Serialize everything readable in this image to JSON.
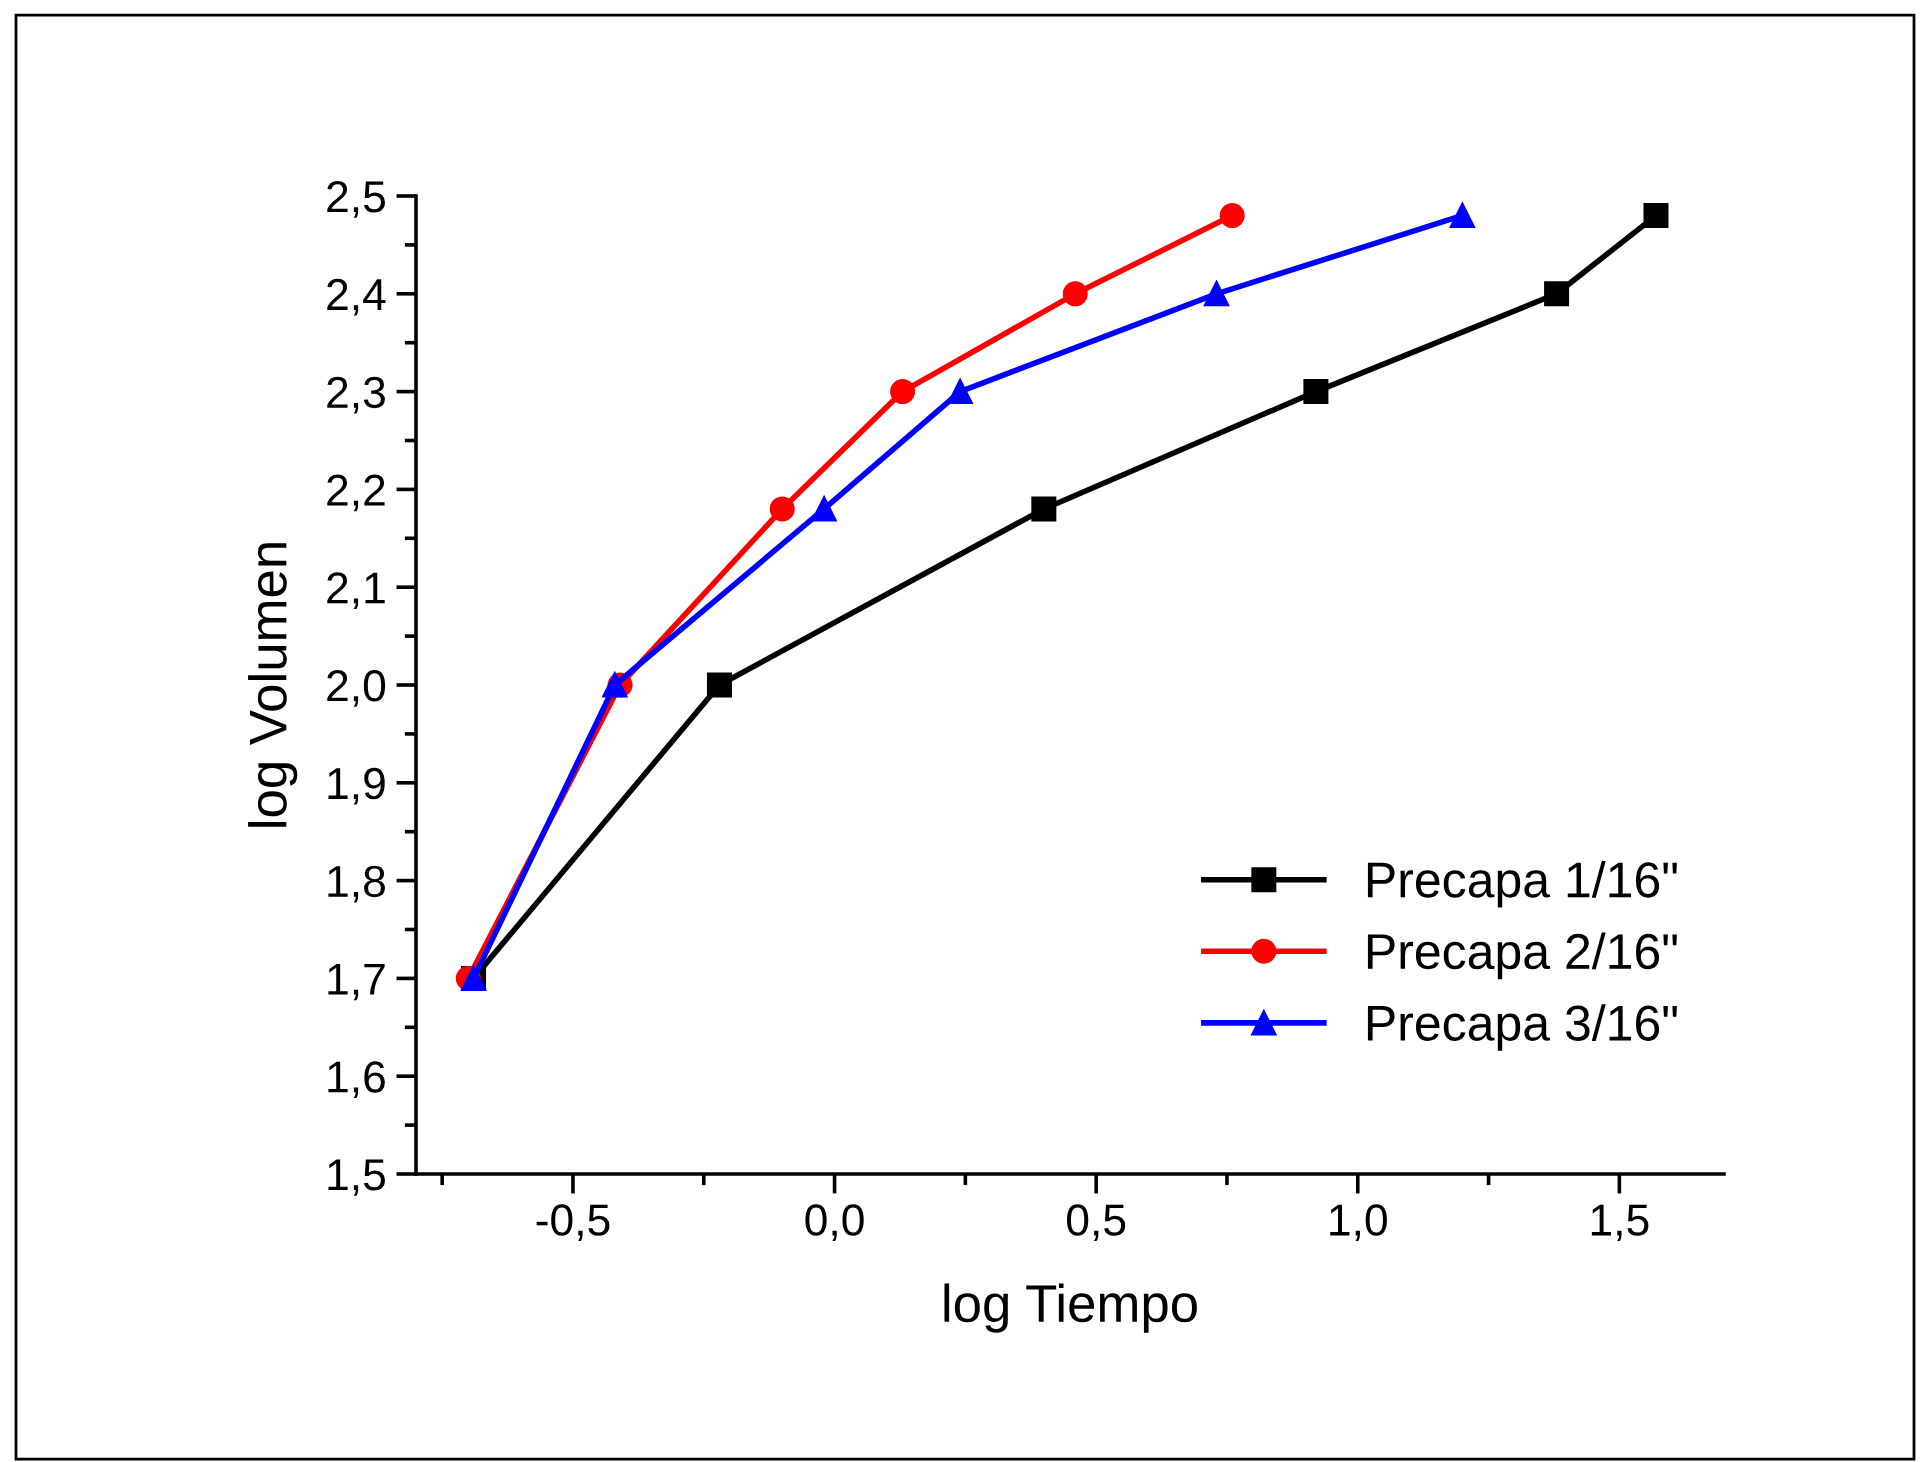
{
  "chart_data": {
    "type": "line",
    "xlabel": "log Tiempo",
    "ylabel": "log Volumen",
    "xlim": [
      -0.8,
      1.7
    ],
    "xticks": [
      {
        "value": -0.5,
        "label": "-0,5"
      },
      {
        "value": 0.0,
        "label": "0,0"
      },
      {
        "value": 0.5,
        "label": "0,5"
      },
      {
        "value": 1.0,
        "label": "1,0"
      },
      {
        "value": 1.5,
        "label": "1,5"
      }
    ],
    "ylim": [
      1.5,
      2.5
    ],
    "yticks": [
      {
        "value": 1.5,
        "label": "1,5"
      },
      {
        "value": 1.6,
        "label": "1,6"
      },
      {
        "value": 1.7,
        "label": "1,7"
      },
      {
        "value": 1.8,
        "label": "1,8"
      },
      {
        "value": 1.9,
        "label": "1,9"
      },
      {
        "value": 2.0,
        "label": "2,0"
      },
      {
        "value": 2.1,
        "label": "2,1"
      },
      {
        "value": 2.2,
        "label": "2,2"
      },
      {
        "value": 2.3,
        "label": "2,3"
      },
      {
        "value": 2.4,
        "label": "2,4"
      },
      {
        "value": 2.5,
        "label": "2,5"
      }
    ],
    "grid": false,
    "legend": "bottom right",
    "line_style": "solid",
    "series": [
      {
        "name": "Precapa 1/16\"",
        "color": "#000000",
        "marker": "square",
        "x": [
          -0.69,
          -0.22,
          0.4,
          0.92,
          1.38,
          1.57
        ],
        "values": [
          1.7,
          2.0,
          2.18,
          2.3,
          2.4,
          2.48
        ]
      },
      {
        "name": "Precapa 2/16\"",
        "color": "#ff0000",
        "marker": "circle",
        "x": [
          -0.7,
          -0.41,
          -0.1,
          0.13,
          0.46,
          0.76
        ],
        "values": [
          1.7,
          2.0,
          2.18,
          2.3,
          2.4,
          2.48
        ]
      },
      {
        "name": "Precapa 3/16\"",
        "color": "#0000ff",
        "marker": "triangle",
        "x": [
          -0.69,
          -0.42,
          -0.02,
          0.24,
          0.73,
          1.2
        ],
        "values": [
          1.7,
          2.0,
          2.18,
          2.3,
          2.4,
          2.48
        ]
      }
    ]
  }
}
